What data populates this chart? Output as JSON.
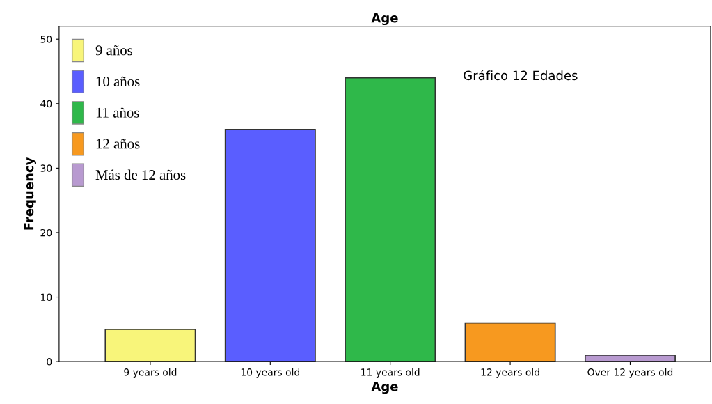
{
  "chart_data": {
    "type": "bar",
    "title": "Age",
    "xlabel": "Age",
    "ylabel": "Frequency",
    "categories": [
      "9 years old",
      "10 years old",
      "11 years old",
      "12 years old",
      "Over 12 years old"
    ],
    "series": [
      {
        "name": "9 años",
        "color": "#f8f57a",
        "values": [
          5,
          null,
          null,
          null,
          null
        ]
      },
      {
        "name": "10 años",
        "color": "#5a5eff",
        "values": [
          null,
          36,
          null,
          null,
          null
        ]
      },
      {
        "name": "11 años",
        "color": "#2fb84a",
        "values": [
          null,
          null,
          44,
          null,
          null
        ]
      },
      {
        "name": "12 años",
        "color": "#f7991f",
        "values": [
          null,
          null,
          null,
          6,
          null
        ]
      },
      {
        "name": "Más de 12 años",
        "color": "#b89ad0",
        "values": [
          null,
          null,
          null,
          null,
          1
        ]
      }
    ],
    "ylim": [
      0,
      52
    ],
    "yticks": [
      0,
      10,
      20,
      30,
      40,
      50
    ],
    "grid": false,
    "legend": "top left",
    "annotations": [
      "Gráfico 12 Edades"
    ]
  }
}
